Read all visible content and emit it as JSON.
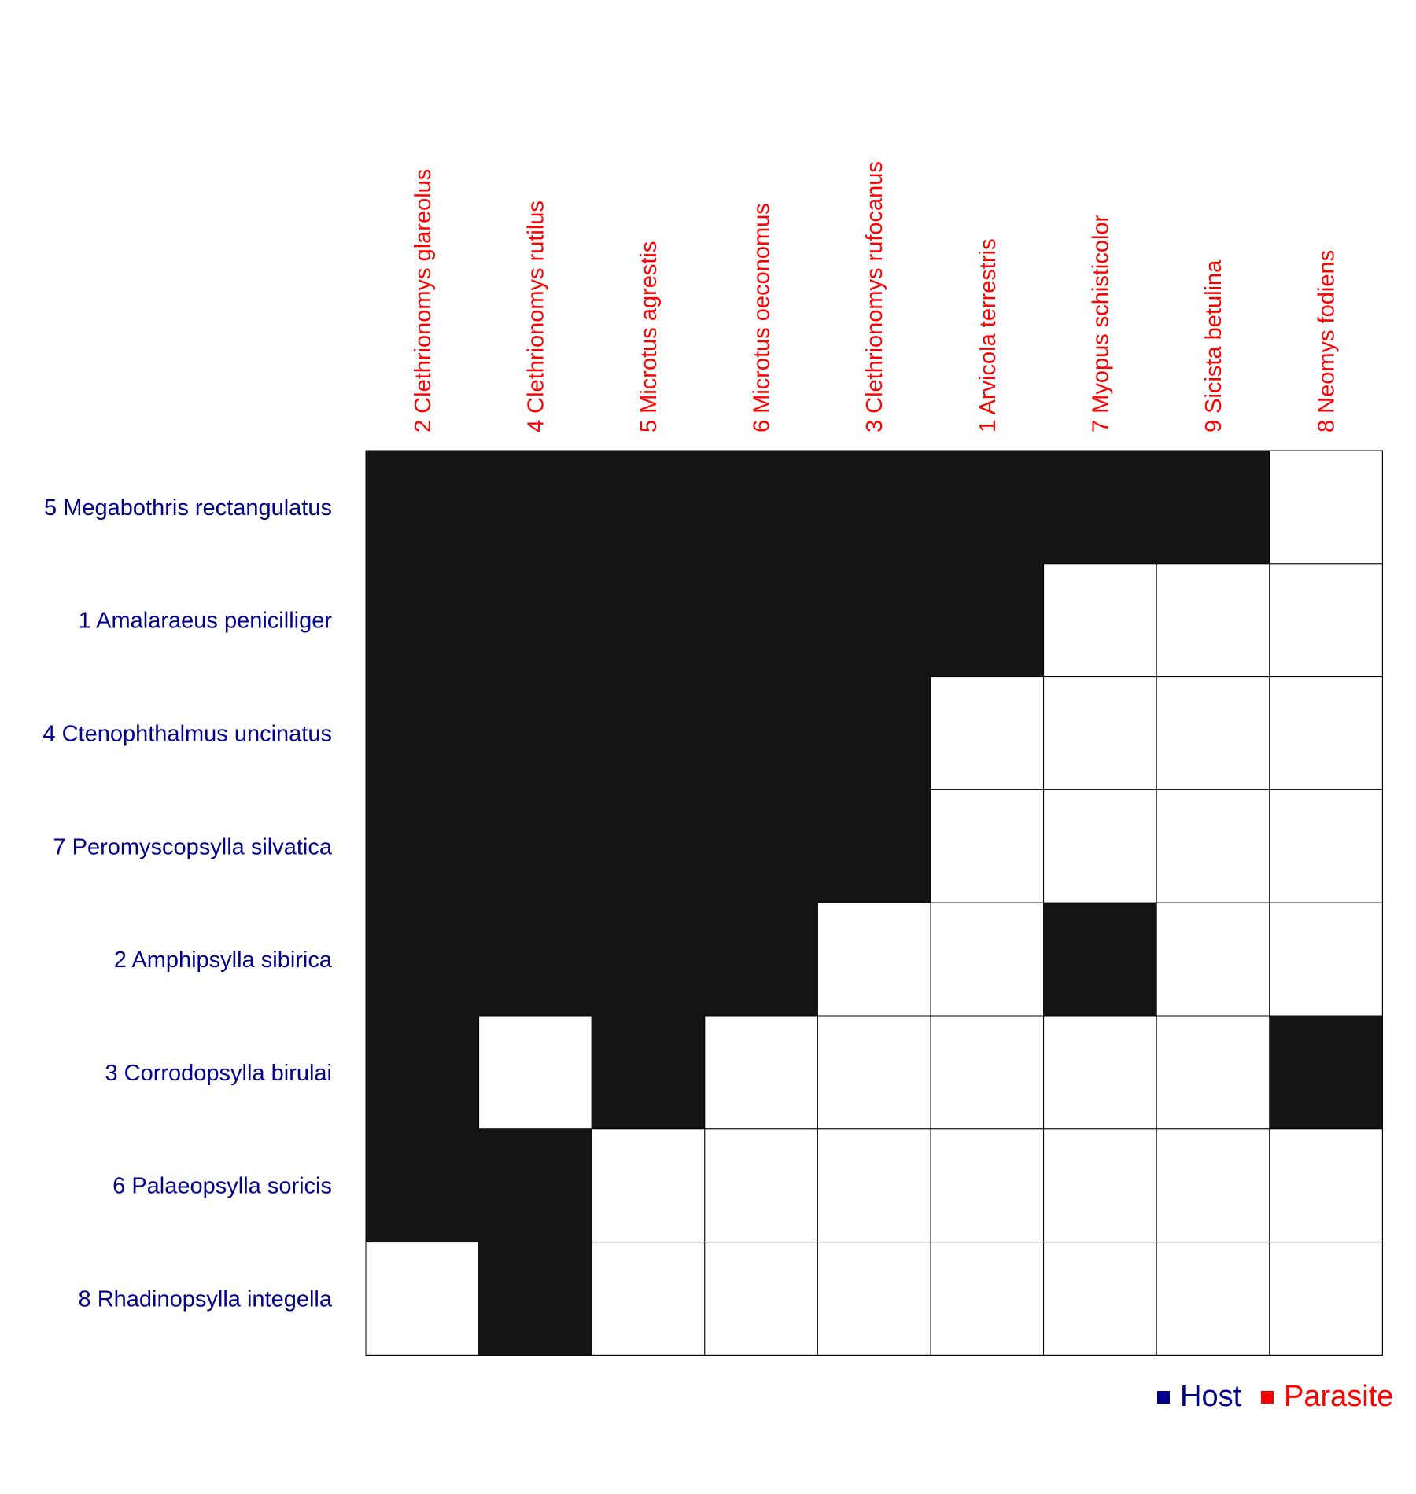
{
  "chart_data": {
    "type": "heatmap",
    "rows": [
      "5 Megabothris rectangulatus",
      "1 Amalaraeus penicilliger",
      "4 Ctenophthalmus uncinatus",
      "7 Peromyscopsylla silvatica",
      "2 Amphipsylla sibirica",
      "3 Corrodopsylla birulai",
      "6 Palaeopsylla soricis",
      "8 Rhadinopsylla integella"
    ],
    "columns": [
      "2 Clethrionomys glareolus",
      "4 Clethrionomys rutilus",
      "5 Microtus agrestis",
      "6 Microtus oeconomus",
      "3 Clethrionomys rufocanus",
      "1 Arvicola terrestris",
      "7 Myopus schisticolor",
      "9 Sicista betulina",
      "8 Neomys fodiens"
    ],
    "matrix": [
      [
        1,
        1,
        1,
        1,
        1,
        1,
        1,
        1,
        0
      ],
      [
        1,
        1,
        1,
        1,
        1,
        1,
        0,
        0,
        0
      ],
      [
        1,
        1,
        1,
        1,
        1,
        0,
        0,
        0,
        0
      ],
      [
        1,
        1,
        1,
        1,
        1,
        0,
        0,
        0,
        0
      ],
      [
        1,
        1,
        1,
        1,
        0,
        0,
        1,
        0,
        0
      ],
      [
        1,
        0,
        1,
        0,
        0,
        0,
        0,
        0,
        1
      ],
      [
        1,
        1,
        0,
        0,
        0,
        0,
        0,
        0,
        0
      ],
      [
        0,
        1,
        0,
        0,
        0,
        0,
        0,
        0,
        0
      ]
    ],
    "legend": [
      {
        "label": "Host",
        "color": "#00008B"
      },
      {
        "label": "Parasite",
        "color": "#FF0000"
      }
    ],
    "legend_position": "bottom-right",
    "colors": {
      "filled": "#141414",
      "empty": "#ffffff",
      "grid": "#000000",
      "row_label": "#00008B",
      "column_label": "#FF0000"
    }
  }
}
